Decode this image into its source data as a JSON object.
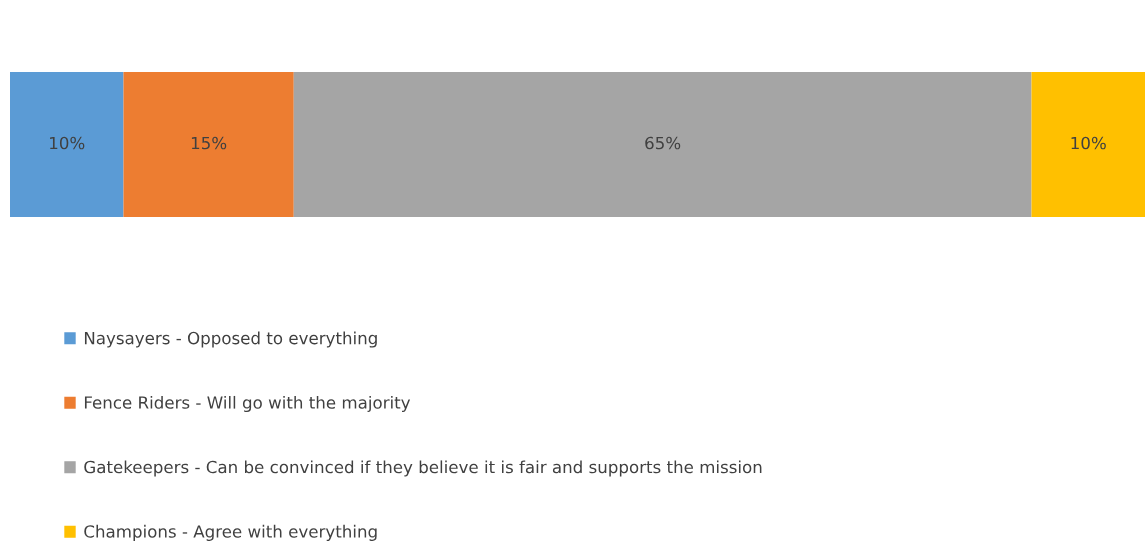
{
  "chart_data": {
    "type": "bar",
    "orientation": "horizontal",
    "stacked": true,
    "categories": [
      null
    ],
    "series": [
      {
        "name": "Naysayers - Opposed to everything",
        "color": "#5b9bd5",
        "values": [
          10
        ],
        "value_labels": [
          "10%"
        ]
      },
      {
        "name": "Fence Riders - Will go with the majority",
        "color": "#ed7d31",
        "values": [
          15
        ],
        "value_labels": [
          "15%"
        ]
      },
      {
        "name": "Gatekeepers - Can be convinced if they believe it is fair and supports the mission",
        "color": "#a5a5a5",
        "values": [
          65
        ],
        "value_labels": [
          "65%"
        ]
      },
      {
        "name": "Champions - Agree with everything",
        "color": "#ffc000",
        "values": [
          10
        ],
        "value_labels": [
          "10%"
        ]
      }
    ],
    "xlim": [
      0,
      100
    ],
    "tick_labels": false,
    "legend": "bottom left"
  }
}
